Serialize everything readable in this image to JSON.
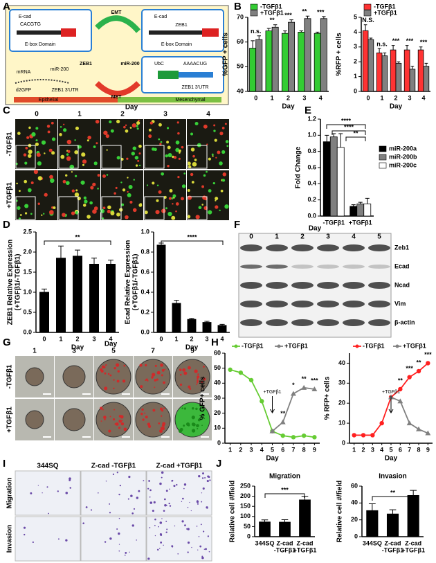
{
  "panel_labels": [
    "A",
    "B",
    "C",
    "D",
    "E",
    "F",
    "G",
    "H",
    "I",
    "J"
  ],
  "panel_a": {
    "texts": [
      "E-cad",
      "CACGTG",
      "E-box Domain",
      "EMT",
      "ZEB1",
      "miR-200",
      "MET",
      "E-cad",
      "ZEB1",
      "E-box Domain",
      "mRNA",
      "miR-200",
      "d2GFP",
      "ZEB1 3'UTR",
      "UbC",
      "AAAACUG",
      "ZEB1 3'UTR",
      "Epithelial",
      "Mesenchymal"
    ]
  },
  "panel_c": {
    "title": "Day",
    "days": [
      "0",
      "1",
      "2",
      "3",
      "4"
    ],
    "rows": [
      "-TGFβ1",
      "+TGFβ1"
    ]
  },
  "panel_f": {
    "title": "Day",
    "days": [
      "0",
      "1",
      "2",
      "3",
      "4",
      "5"
    ],
    "proteins": [
      "Zeb1",
      "Ecad",
      "Ncad",
      "Vim",
      "β-actin"
    ]
  },
  "panel_g": {
    "title": "Day",
    "days": [
      "1",
      "3",
      "5",
      "7",
      "9"
    ],
    "rows": [
      "-TGFβ1",
      "+TGFβ1"
    ]
  },
  "panel_i": {
    "columns": [
      "344SQ",
      "Z-cad -TGFβ1",
      "Z-cad +TGFβ1"
    ],
    "rows": [
      "Migration",
      "Invasion"
    ]
  },
  "chart_data": [
    {
      "type": "bar",
      "xlabel": "Day",
      "ylabel": "%GFP + cells",
      "categories": [
        "0",
        "1",
        "2",
        "3",
        "4"
      ],
      "series": [
        {
          "name": "-TGFβ1",
          "color": "#33cc33",
          "values": [
            57.5,
            64.5,
            63.5,
            64,
            63.5
          ],
          "errors": [
            3,
            1,
            1,
            0.5,
            0.5
          ]
        },
        {
          "name": "+TGFβ1",
          "color": "#808080",
          "values": [
            61,
            66,
            68,
            69.5,
            69.5
          ],
          "errors": [
            1.5,
            1,
            1,
            1,
            0.8
          ]
        }
      ],
      "ylim": [
        40,
        70
      ],
      "yticks": [
        40,
        50,
        60,
        70
      ],
      "annotations": [
        "n.s.",
        "**",
        "***",
        "**",
        "***"
      ]
    },
    {
      "type": "bar",
      "xlabel": "Day",
      "ylabel": "%RFP + cells",
      "categories": [
        "0",
        "1",
        "2",
        "3",
        "4"
      ],
      "series": [
        {
          "name": "-TGFβ1",
          "color": "#ff3333",
          "values": [
            4.1,
            2.6,
            2.8,
            2.8,
            2.8
          ],
          "errors": [
            0.4,
            0.3,
            0.3,
            0.3,
            0.2
          ]
        },
        {
          "name": "+TGFβ1",
          "color": "#808080",
          "values": [
            3.5,
            2.4,
            1.9,
            1.5,
            1.7
          ],
          "errors": [
            0.1,
            0.2,
            0.1,
            0.2,
            0.2
          ]
        }
      ],
      "ylim": [
        0,
        5
      ],
      "yticks": [
        0,
        1,
        2,
        3,
        4,
        5
      ],
      "annotations": [
        "N.S.",
        "n.s.",
        "***",
        "***",
        "***"
      ]
    },
    {
      "type": "bar",
      "ylabel": "Fold Change",
      "categories": [
        "-TGFβ1",
        "+TGFβ1"
      ],
      "series": [
        {
          "name": "miR-200a",
          "color": "#000000",
          "values": [
            0.92,
            0.12
          ],
          "errors": [
            0.08,
            0.02
          ]
        },
        {
          "name": "miR-200b",
          "color": "#808080",
          "values": [
            0.98,
            0.15
          ],
          "errors": [
            0.04,
            0.02
          ]
        },
        {
          "name": "miR-200c",
          "color": "#ffffff",
          "values": [
            0.85,
            0.15
          ],
          "errors": [
            0.17,
            0.07
          ]
        }
      ],
      "ylim": [
        0,
        1.2
      ],
      "yticks": [
        {
          "value": 0,
          "label": "0.0"
        },
        0.2,
        0.4,
        0.6,
        0.8,
        {
          "value": 1,
          "label": "1.0"
        },
        1.2
      ],
      "annotations": [
        "****",
        "****",
        "**"
      ]
    },
    {
      "type": "bar",
      "xlabel": "Day",
      "ylabel": [
        "ZEB1 Relative Expression",
        "(+TGFβ1/-TGFβ1)"
      ],
      "categories": [
        "0",
        "1",
        "2",
        "3",
        "4"
      ],
      "values": [
        1.0,
        1.85,
        1.9,
        1.7,
        1.7
      ],
      "errors": [
        0.08,
        0.3,
        0.15,
        0.15,
        0.1
      ],
      "color": "#000000",
      "ylim": [
        0,
        2.5
      ],
      "yticks": [
        {
          "value": 0,
          "label": "0.0"
        },
        0.5,
        {
          "value": 1,
          "label": "1.0"
        },
        1.5,
        {
          "value": 2,
          "label": "2.0"
        },
        2.5
      ],
      "annotations": [
        "**"
      ]
    },
    {
      "type": "bar",
      "xlabel": "Day",
      "ylabel": [
        "Ecad Relative Expression",
        "(+TGFβ1/-TGFβ1)"
      ],
      "categories": [
        "0",
        "1",
        "2",
        "3",
        "4"
      ],
      "values": [
        0.87,
        0.29,
        0.13,
        0.1,
        0.07
      ],
      "errors": [
        0.02,
        0.03,
        0.01,
        0.01,
        0.01
      ],
      "color": "#000000",
      "ylim": [
        0,
        1
      ],
      "yticks": [
        {
          "value": 0,
          "label": "0.0"
        },
        0.2,
        0.4,
        0.6,
        0.8,
        {
          "value": 1,
          "label": "1.0"
        }
      ],
      "annotations": [
        "****"
      ]
    },
    {
      "type": "line",
      "xlabel": "Day",
      "ylabel": "% GFP+ cells",
      "x": [
        1,
        2,
        3,
        4,
        5,
        6,
        7,
        8,
        9
      ],
      "series": [
        {
          "name": "-TGFβ1",
          "color": "#66cc33",
          "marker": "circle",
          "values": [
            49,
            47,
            42,
            28,
            8,
            5,
            4,
            5,
            4
          ]
        },
        {
          "name": "+TGFβ1",
          "color": "#808080",
          "marker": "triangle",
          "values": [
            null,
            null,
            null,
            null,
            8,
            14,
            33,
            37,
            36
          ]
        }
      ],
      "xlim": [
        0.5,
        9.5
      ],
      "xticks": [
        1,
        2,
        3,
        4,
        5,
        6,
        7,
        8,
        9
      ],
      "ylim": [
        0,
        60
      ],
      "yticks": [
        0,
        10,
        20,
        30,
        40,
        50,
        60
      ],
      "annotations": [
        null,
        null,
        null,
        null,
        null,
        "**",
        "*",
        "**",
        "***"
      ],
      "arrow": {
        "x": 5,
        "label": "+TGFβ1"
      }
    },
    {
      "type": "line",
      "xlabel": "Day",
      "ylabel": "% RFP+ cells",
      "x": [
        1,
        2,
        3,
        4,
        5,
        6,
        7,
        8,
        9
      ],
      "series": [
        {
          "name": "-TGFβ1",
          "color": "#ff2020",
          "marker": "circle",
          "values": [
            4,
            4,
            4,
            10,
            23,
            27,
            33,
            36,
            40
          ]
        },
        {
          "name": "+TGFβ1",
          "color": "#808080",
          "marker": "triangle",
          "values": [
            null,
            null,
            null,
            null,
            23,
            21,
            10,
            7,
            5
          ]
        }
      ],
      "xlim": [
        0.5,
        9.5
      ],
      "xticks": [
        1,
        2,
        3,
        4,
        5,
        6,
        7,
        8,
        9
      ],
      "ylim": [
        0,
        45
      ],
      "yticks": [
        0,
        10,
        20,
        30,
        40
      ],
      "annotations": [
        null,
        null,
        null,
        null,
        null,
        "**",
        "***",
        "**",
        "***"
      ],
      "arrow": {
        "x": 5,
        "label": "+TGFβ1"
      }
    },
    {
      "type": "bar",
      "title": "Migration",
      "ylabel": "Relative cell #/field",
      "categories": [
        "344SQ",
        [
          "Z-cad",
          "-TGFβ1"
        ],
        [
          "Z-cad",
          "+TGFβ1"
        ]
      ],
      "values": [
        73,
        72,
        182
      ],
      "errors": [
        10,
        12,
        18
      ],
      "color": "#000000",
      "ylim": [
        0,
        250
      ],
      "yticks": [
        0,
        50,
        100,
        150,
        200,
        250
      ],
      "annotations": [
        "***"
      ]
    },
    {
      "type": "bar",
      "title": "Invasion",
      "ylabel": "Relative cell #/field",
      "categories": [
        "344SQ",
        [
          "Z-cad",
          "-TGFβ1"
        ],
        [
          "Z-cad",
          "+TGFβ1"
        ]
      ],
      "values": [
        31,
        27,
        49
      ],
      "errors": [
        8,
        5,
        6
      ],
      "color": "#000000",
      "ylim": [
        0,
        60
      ],
      "yticks": [
        0,
        20,
        40,
        60
      ],
      "annotations": [
        "**"
      ]
    }
  ]
}
